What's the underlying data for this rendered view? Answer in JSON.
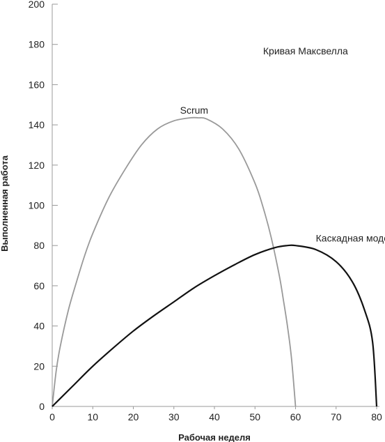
{
  "chart_data": {
    "type": "line",
    "title": "Кривая Максвелла",
    "xlabel": "Рабочая неделя",
    "ylabel": "Выполненная работа",
    "xlim": [
      0,
      80
    ],
    "ylim": [
      0,
      200
    ],
    "x_ticks": [
      0,
      10,
      20,
      30,
      40,
      50,
      60,
      70,
      80
    ],
    "y_ticks": [
      0,
      20,
      40,
      60,
      80,
      100,
      120,
      140,
      160,
      180,
      200
    ],
    "grid": false,
    "colors": {
      "Scrum": "#999999",
      "Каскадная модель": "#111111",
      "axis": "#999999"
    },
    "series": [
      {
        "name": "Scrum",
        "x": [
          0,
          1,
          2,
          4,
          6,
          8,
          10,
          14,
          18,
          22,
          26,
          30,
          34,
          36,
          38,
          42,
          46,
          50,
          52,
          54,
          56,
          57,
          58,
          59,
          60
        ],
        "y": [
          0,
          18,
          30,
          48,
          62,
          75,
          86,
          104,
          118,
          130,
          138,
          142,
          143.5,
          143.5,
          143,
          138,
          128,
          111,
          99,
          84,
          65,
          53,
          40,
          24,
          0
        ]
      },
      {
        "name": "Каскадная модель",
        "x": [
          0,
          2,
          5,
          10,
          15,
          20,
          25,
          30,
          35,
          40,
          45,
          50,
          55,
          58,
          60,
          65,
          70,
          74,
          77,
          79,
          80
        ],
        "y": [
          0,
          4,
          10,
          20,
          29,
          37.5,
          45,
          52,
          59,
          65,
          70.5,
          75.5,
          79,
          80,
          80,
          78,
          72,
          62,
          48,
          32,
          0
        ]
      }
    ],
    "annotations": [
      {
        "text": "Кривая Максвелла",
        "x": 52,
        "y": 175
      },
      {
        "text": "Scrum",
        "x": 35,
        "y": 145.5
      },
      {
        "text": "Каскадная модель",
        "x": 65,
        "y": 82
      }
    ]
  }
}
